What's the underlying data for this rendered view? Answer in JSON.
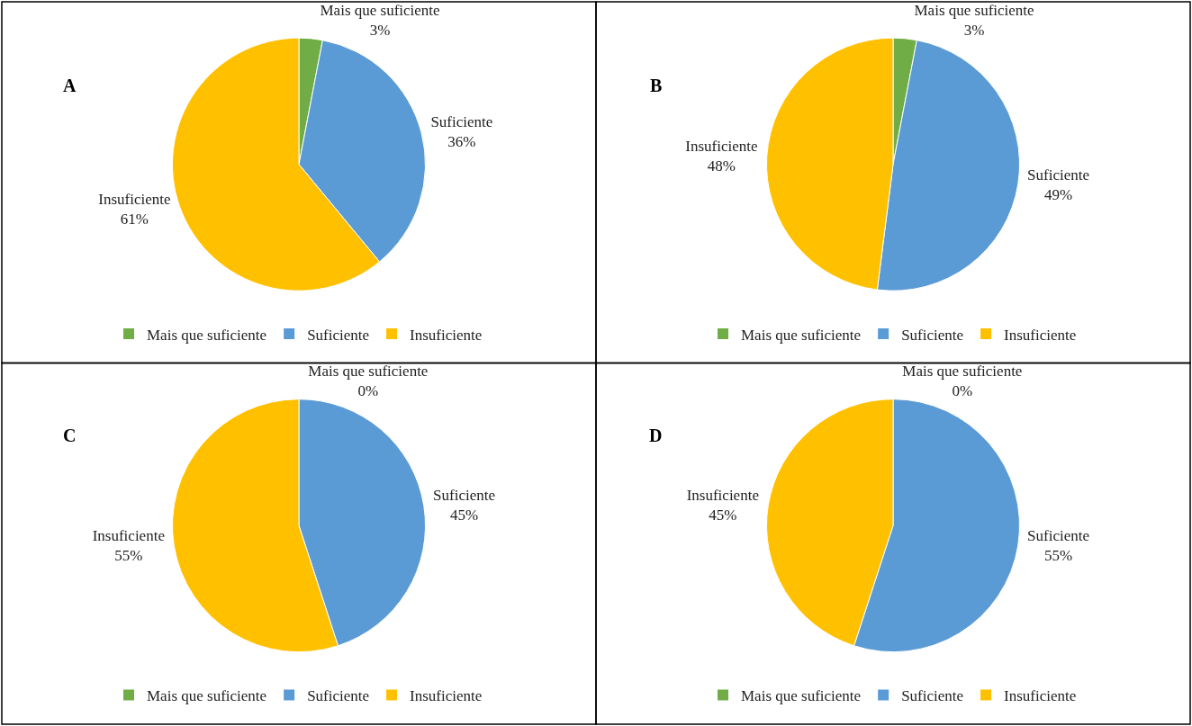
{
  "chart_data": [
    {
      "type": "pie",
      "title": "A",
      "categories": [
        "Mais que suficiente",
        "Suficiente",
        "Insuficiente"
      ],
      "values": [
        3,
        36,
        61
      ],
      "value_labels": [
        "3%",
        "36%",
        "61%"
      ],
      "colors": [
        "#70ad47",
        "#5b9bd5",
        "#ffc000"
      ],
      "legend": "bottom"
    },
    {
      "type": "pie",
      "title": "B",
      "categories": [
        "Mais que suficiente",
        "Suficiente",
        "Insuficiente"
      ],
      "values": [
        3,
        49,
        48
      ],
      "value_labels": [
        "3%",
        "49%",
        "48%"
      ],
      "colors": [
        "#70ad47",
        "#5b9bd5",
        "#ffc000"
      ],
      "legend": "bottom"
    },
    {
      "type": "pie",
      "title": "C",
      "categories": [
        "Mais que suficiente",
        "Suficiente",
        "Insuficiente"
      ],
      "values": [
        0,
        45,
        55
      ],
      "value_labels": [
        "0%",
        "45%",
        "55%"
      ],
      "colors": [
        "#70ad47",
        "#5b9bd5",
        "#ffc000"
      ],
      "legend": "bottom"
    },
    {
      "type": "pie",
      "title": "D",
      "categories": [
        "Mais que suficiente",
        "Suficiente",
        "Insuficiente"
      ],
      "values": [
        0,
        55,
        45
      ],
      "value_labels": [
        "0%",
        "55%",
        "45%"
      ],
      "colors": [
        "#70ad47",
        "#5b9bd5",
        "#ffc000"
      ],
      "legend": "bottom"
    }
  ]
}
